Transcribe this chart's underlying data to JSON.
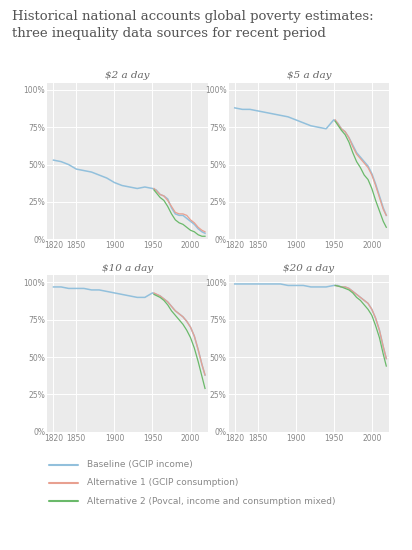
{
  "title": "Historical national accounts global poverty estimates:\nthree inequality data sources for recent period",
  "title_fontsize": 9.5,
  "bg_color": "#ebebeb",
  "fig_bg": "#ffffff",
  "subplots": [
    {
      "label": "$2 a day",
      "baseline": {
        "x": [
          1820,
          1830,
          1840,
          1850,
          1860,
          1870,
          1880,
          1890,
          1900,
          1910,
          1920,
          1930,
          1940,
          1950,
          1955,
          1960,
          1965,
          1970,
          1975,
          1980,
          1985,
          1990,
          1995,
          2000,
          2005,
          2010,
          2015,
          2019
        ],
        "y": [
          53,
          52,
          50,
          47,
          46,
          45,
          43,
          41,
          38,
          36,
          35,
          34,
          35,
          34,
          33,
          30,
          29,
          27,
          21,
          17,
          16,
          16,
          14,
          12,
          10,
          7,
          5,
          4
        ]
      },
      "alt1": {
        "x": [
          1952,
          1960,
          1965,
          1970,
          1975,
          1980,
          1985,
          1990,
          1995,
          2000,
          2005,
          2010,
          2015,
          2019
        ],
        "y": [
          34,
          30,
          29,
          26,
          22,
          18,
          17,
          17,
          16,
          13,
          11,
          8,
          6,
          5
        ]
      },
      "alt2": {
        "x": [
          1952,
          1960,
          1965,
          1970,
          1975,
          1980,
          1985,
          1990,
          1995,
          2000,
          2005,
          2010,
          2015,
          2019
        ],
        "y": [
          33,
          28,
          26,
          22,
          17,
          13,
          11,
          10,
          8,
          6,
          5,
          3,
          2,
          2
        ]
      },
      "ylim": [
        0,
        105
      ],
      "yticks": [
        0,
        25,
        50,
        75,
        100
      ],
      "ytick_labels": [
        "0%",
        "25%",
        "50%",
        "75%",
        "100%"
      ]
    },
    {
      "label": "$5 a day",
      "baseline": {
        "x": [
          1820,
          1830,
          1840,
          1850,
          1860,
          1870,
          1880,
          1890,
          1900,
          1910,
          1920,
          1930,
          1940,
          1950,
          1955,
          1960,
          1965,
          1970,
          1975,
          1980,
          1985,
          1990,
          1995,
          2000,
          2005,
          2010,
          2015,
          2019
        ],
        "y": [
          88,
          87,
          87,
          86,
          85,
          84,
          83,
          82,
          80,
          78,
          76,
          75,
          74,
          80,
          78,
          74,
          72,
          68,
          63,
          58,
          55,
          52,
          49,
          44,
          37,
          29,
          21,
          16
        ]
      },
      "alt1": {
        "x": [
          1952,
          1960,
          1965,
          1970,
          1975,
          1980,
          1985,
          1990,
          1995,
          2000,
          2005,
          2010,
          2015,
          2019
        ],
        "y": [
          80,
          74,
          72,
          68,
          62,
          57,
          54,
          51,
          48,
          43,
          36,
          28,
          20,
          16
        ]
      },
      "alt2": {
        "x": [
          1952,
          1960,
          1965,
          1970,
          1975,
          1980,
          1985,
          1990,
          1995,
          2000,
          2005,
          2010,
          2015,
          2019
        ],
        "y": [
          79,
          73,
          70,
          65,
          58,
          52,
          48,
          43,
          40,
          34,
          26,
          19,
          12,
          8
        ]
      },
      "ylim": [
        0,
        105
      ],
      "yticks": [
        0,
        25,
        50,
        75,
        100
      ],
      "ytick_labels": [
        "0%",
        "25%",
        "50%",
        "75%",
        "100%"
      ]
    },
    {
      "label": "$10 a day",
      "baseline": {
        "x": [
          1820,
          1830,
          1840,
          1850,
          1860,
          1870,
          1880,
          1890,
          1900,
          1910,
          1920,
          1930,
          1940,
          1950,
          1955,
          1960,
          1965,
          1970,
          1975,
          1980,
          1985,
          1990,
          1995,
          2000,
          2005,
          2010,
          2015,
          2019
        ],
        "y": [
          97,
          97,
          96,
          96,
          96,
          95,
          95,
          94,
          93,
          92,
          91,
          90,
          90,
          93,
          92,
          91,
          89,
          87,
          84,
          81,
          79,
          77,
          74,
          70,
          64,
          55,
          45,
          38
        ]
      },
      "alt1": {
        "x": [
          1952,
          1960,
          1965,
          1970,
          1975,
          1980,
          1985,
          1990,
          1995,
          2000,
          2005,
          2010,
          2015,
          2019
        ],
        "y": [
          93,
          91,
          89,
          87,
          84,
          81,
          79,
          77,
          74,
          70,
          64,
          55,
          45,
          38
        ]
      },
      "alt2": {
        "x": [
          1952,
          1960,
          1965,
          1970,
          1975,
          1980,
          1985,
          1990,
          1995,
          2000,
          2005,
          2010,
          2015,
          2019
        ],
        "y": [
          92,
          90,
          88,
          85,
          81,
          78,
          75,
          72,
          68,
          63,
          56,
          47,
          37,
          29
        ]
      },
      "ylim": [
        0,
        105
      ],
      "yticks": [
        0,
        25,
        50,
        75,
        100
      ],
      "ytick_labels": [
        "0%",
        "25%",
        "50%",
        "75%",
        "100%"
      ]
    },
    {
      "label": "$20 a day",
      "baseline": {
        "x": [
          1820,
          1830,
          1840,
          1850,
          1860,
          1870,
          1880,
          1890,
          1900,
          1910,
          1920,
          1930,
          1940,
          1950,
          1955,
          1960,
          1965,
          1970,
          1975,
          1980,
          1985,
          1990,
          1995,
          2000,
          2005,
          2010,
          2015,
          2019
        ],
        "y": [
          99,
          99,
          99,
          99,
          99,
          99,
          99,
          98,
          98,
          98,
          97,
          97,
          97,
          98,
          98,
          97,
          97,
          96,
          94,
          92,
          90,
          88,
          86,
          82,
          76,
          68,
          57,
          49
        ]
      },
      "alt1": {
        "x": [
          1952,
          1960,
          1965,
          1970,
          1975,
          1980,
          1985,
          1990,
          1995,
          2000,
          2005,
          2010,
          2015,
          2019
        ],
        "y": [
          98,
          97,
          97,
          96,
          94,
          92,
          90,
          88,
          86,
          82,
          76,
          68,
          57,
          49
        ]
      },
      "alt2": {
        "x": [
          1952,
          1960,
          1965,
          1970,
          1975,
          1980,
          1985,
          1990,
          1995,
          2000,
          2005,
          2010,
          2015,
          2019
        ],
        "y": [
          98,
          97,
          96,
          95,
          93,
          90,
          88,
          85,
          82,
          78,
          71,
          63,
          52,
          44
        ]
      },
      "ylim": [
        0,
        105
      ],
      "yticks": [
        0,
        25,
        50,
        75,
        100
      ],
      "ytick_labels": [
        "0%",
        "25%",
        "50%",
        "75%",
        "100%"
      ]
    }
  ],
  "color_baseline": "#92c0dc",
  "color_alt1": "#e8a090",
  "color_alt2": "#6ab96a",
  "legend_labels": [
    "Baseline (GCIP income)",
    "Alternative 1 (GCIP consumption)",
    "Alternative 2 (Povcal, income and consumption mixed)"
  ],
  "xlim": [
    1812,
    2023
  ],
  "xticks": [
    1820,
    1850,
    1900,
    1950,
    2000
  ],
  "xtick_labels": [
    "1820",
    "1850",
    "1900",
    "1950",
    "2000"
  ]
}
